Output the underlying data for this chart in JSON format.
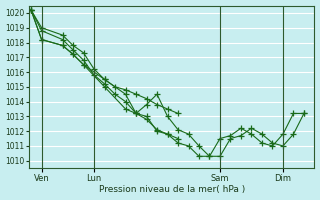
{
  "title": "Pression niveau de la mer( hPa )",
  "bg_color": "#c8eef0",
  "grid_color": "#ffffff",
  "line_color": "#1a6b1a",
  "ylim": [
    1009.5,
    1020.5
  ],
  "yticks": [
    1010,
    1011,
    1012,
    1013,
    1014,
    1015,
    1016,
    1017,
    1018,
    1019,
    1020
  ],
  "xtick_labels": [
    "Ven",
    "Lun",
    "Sam",
    "Dim"
  ],
  "vline_positions": [
    0.5,
    3.0,
    9.0,
    12.0
  ],
  "xlim": [
    -0.1,
    13.5
  ],
  "series": [
    {
      "x": [
        0,
        0.5,
        1.5,
        2.0,
        2.5,
        3.0,
        3.5,
        4.0,
        4.5,
        5.0,
        5.5,
        6.0,
        6.5,
        7.0
      ],
      "y": [
        1020.2,
        1019.0,
        1018.5,
        1017.8,
        1017.3,
        1016.2,
        1015.5,
        1015.0,
        1014.8,
        1014.5,
        1014.2,
        1013.8,
        1013.5,
        1013.2
      ]
    },
    {
      "x": [
        0,
        0.5,
        1.5,
        2.0,
        2.5,
        3.0,
        3.5,
        4.0,
        4.5,
        5.0,
        5.5,
        6.0,
        6.5,
        7.0
      ],
      "y": [
        1020.2,
        1018.8,
        1018.2,
        1017.5,
        1016.8,
        1015.8,
        1015.2,
        1014.5,
        1014.0,
        1013.2,
        1012.8,
        1012.1,
        1011.8,
        1011.5
      ]
    },
    {
      "x": [
        0,
        0.5,
        1.5,
        2.0,
        2.5,
        3.5,
        4.5,
        5.0,
        5.5,
        6.0,
        6.5,
        7.0,
        7.5,
        8.0,
        8.5,
        9.0,
        9.5,
        10.0,
        10.5,
        11.0,
        11.5,
        12.0,
        12.5,
        13.0
      ],
      "y": [
        1020.2,
        1018.2,
        1017.8,
        1017.2,
        1016.5,
        1015.0,
        1013.5,
        1013.2,
        1013.8,
        1014.5,
        1013.0,
        1012.1,
        1011.8,
        1011.0,
        1010.3,
        1010.3,
        1011.5,
        1011.7,
        1012.2,
        1011.8,
        1011.2,
        1011.0,
        1011.8,
        1013.2
      ]
    },
    {
      "x": [
        0,
        0.5,
        1.5,
        2.0,
        2.5,
        3.5,
        4.5,
        5.0,
        5.5,
        6.0,
        6.5,
        7.0,
        7.5,
        8.0,
        8.5,
        9.0,
        9.5,
        10.0,
        10.5,
        11.0,
        11.5,
        12.0,
        12.5,
        13.0
      ],
      "y": [
        1020.2,
        1018.2,
        1017.8,
        1017.2,
        1016.5,
        1015.5,
        1014.5,
        1013.2,
        1013.0,
        1012.0,
        1011.8,
        1011.2,
        1011.0,
        1010.3,
        1010.3,
        1011.5,
        1011.7,
        1012.2,
        1011.8,
        1011.2,
        1011.0,
        1011.8,
        1013.2,
        1013.2
      ]
    }
  ]
}
